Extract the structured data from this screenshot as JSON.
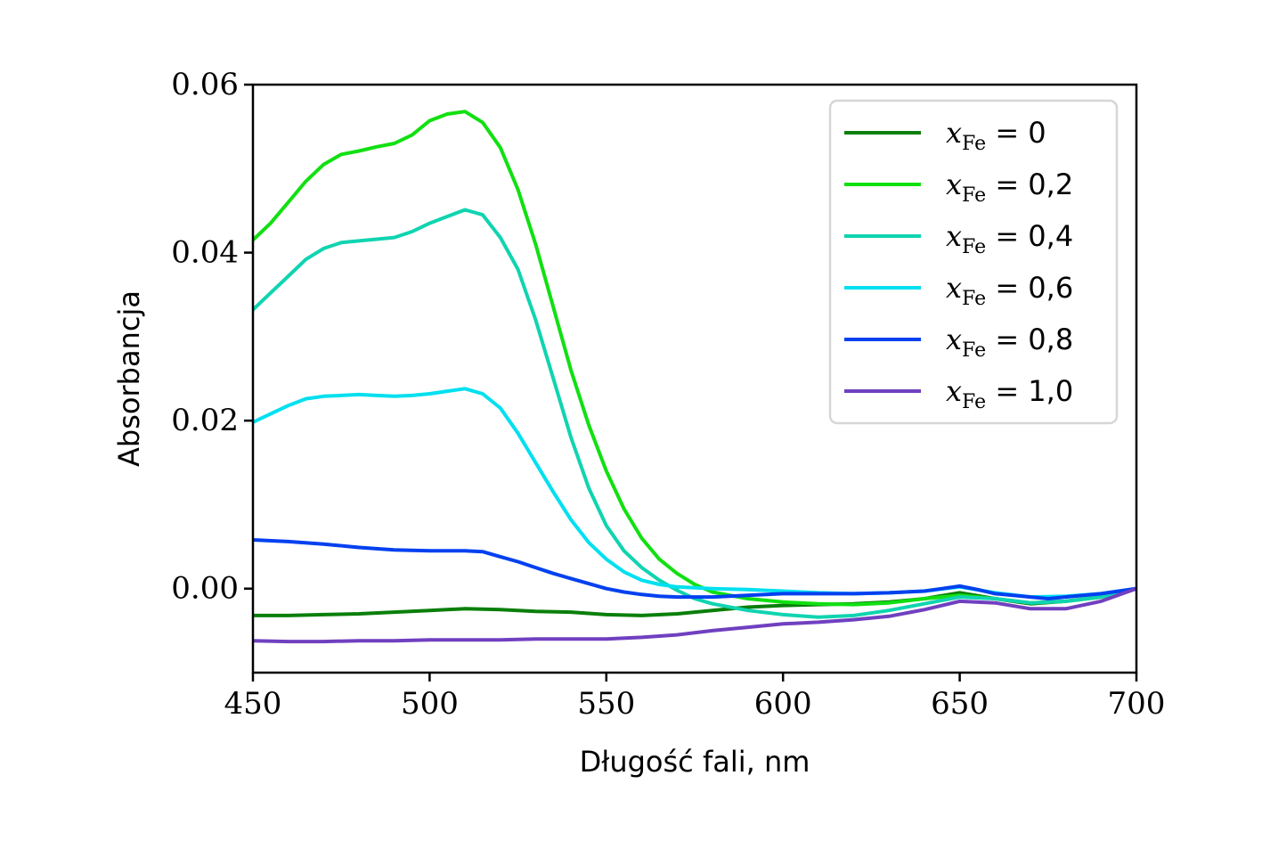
{
  "chart_data": {
    "type": "line",
    "xlabel": "Długość fali, nm",
    "ylabel": "Absorbancja",
    "xlim": [
      450,
      700
    ],
    "ylim": [
      -0.01,
      0.06
    ],
    "xticks": [
      450,
      500,
      550,
      600,
      650,
      700
    ],
    "yticks": [
      0.0,
      0.02,
      0.04,
      0.06
    ],
    "xtick_labels": [
      "450",
      "500",
      "550",
      "600",
      "650",
      "700"
    ],
    "ytick_labels": [
      "0.00",
      "0.02",
      "0.04",
      "0.06"
    ],
    "grid": false,
    "legend_position": "top-right",
    "legend_prefix_var": "x",
    "legend_prefix_sub": "Fe",
    "series": [
      {
        "name": "0",
        "color": "#0a7f0a",
        "x": [
          450,
          460,
          470,
          480,
          490,
          500,
          510,
          520,
          530,
          540,
          550,
          560,
          570,
          580,
          590,
          600,
          610,
          620,
          630,
          640,
          650,
          660,
          670,
          680,
          690,
          700
        ],
        "y": [
          -0.0032,
          -0.0032,
          -0.0031,
          -0.003,
          -0.0028,
          -0.0026,
          -0.0024,
          -0.0025,
          -0.0027,
          -0.0028,
          -0.0031,
          -0.0032,
          -0.003,
          -0.0026,
          -0.0022,
          -0.002,
          -0.0019,
          -0.0018,
          -0.0016,
          -0.0012,
          -0.0005,
          -0.0012,
          -0.0018,
          -0.0015,
          -0.001,
          0.0
        ]
      },
      {
        "name": "0,2",
        "color": "#11e011",
        "x": [
          450,
          455,
          460,
          465,
          470,
          475,
          480,
          485,
          490,
          495,
          500,
          505,
          510,
          515,
          520,
          525,
          530,
          535,
          540,
          545,
          550,
          555,
          560,
          565,
          570,
          575,
          580,
          590,
          600,
          610,
          620,
          630,
          640,
          650,
          660,
          670,
          680,
          690,
          700
        ],
        "y": [
          0.0415,
          0.0435,
          0.046,
          0.0485,
          0.0505,
          0.0517,
          0.0521,
          0.0526,
          0.053,
          0.054,
          0.0557,
          0.0565,
          0.0568,
          0.0555,
          0.0525,
          0.0475,
          0.041,
          0.0335,
          0.026,
          0.0195,
          0.014,
          0.0095,
          0.006,
          0.0035,
          0.0018,
          0.0005,
          -0.0004,
          -0.0012,
          -0.0016,
          -0.0018,
          -0.0019,
          -0.0017,
          -0.0012,
          -0.0008,
          -0.0012,
          -0.0017,
          -0.0015,
          -0.001,
          0.0
        ]
      },
      {
        "name": "0,4",
        "color": "#10d4b0",
        "x": [
          450,
          455,
          460,
          465,
          470,
          475,
          480,
          485,
          490,
          495,
          500,
          505,
          510,
          515,
          520,
          525,
          530,
          535,
          540,
          545,
          550,
          555,
          560,
          565,
          570,
          575,
          580,
          590,
          600,
          610,
          620,
          630,
          640,
          650,
          660,
          670,
          680,
          690,
          700
        ],
        "y": [
          0.0332,
          0.0352,
          0.0372,
          0.0392,
          0.0405,
          0.0412,
          0.0414,
          0.0416,
          0.0418,
          0.0425,
          0.0435,
          0.0443,
          0.0451,
          0.0445,
          0.0418,
          0.038,
          0.032,
          0.025,
          0.018,
          0.012,
          0.0075,
          0.0045,
          0.0025,
          0.001,
          -0.0002,
          -0.0012,
          -0.0018,
          -0.0026,
          -0.0031,
          -0.0034,
          -0.0032,
          -0.0026,
          -0.0018,
          -0.001,
          -0.0012,
          -0.0017,
          -0.0015,
          -0.001,
          0.0
        ]
      },
      {
        "name": "0,6",
        "color": "#00e0f0",
        "x": [
          450,
          455,
          460,
          465,
          470,
          475,
          480,
          485,
          490,
          495,
          500,
          505,
          510,
          515,
          520,
          525,
          530,
          535,
          540,
          545,
          550,
          555,
          560,
          565,
          570,
          575,
          580,
          590,
          600,
          610,
          620,
          630,
          640,
          650,
          660,
          670,
          680,
          690,
          700
        ],
        "y": [
          0.0198,
          0.0208,
          0.0218,
          0.0226,
          0.0229,
          0.023,
          0.0231,
          0.023,
          0.0229,
          0.023,
          0.0232,
          0.0235,
          0.0238,
          0.0232,
          0.0215,
          0.0185,
          0.015,
          0.0115,
          0.0082,
          0.0055,
          0.0035,
          0.002,
          0.001,
          0.0005,
          0.0002,
          0.0001,
          0.0,
          -0.0001,
          -0.0003,
          -0.0005,
          -0.0006,
          -0.0005,
          -0.0003,
          0.0002,
          -0.0005,
          -0.001,
          -0.0009,
          -0.0006,
          0.0
        ]
      },
      {
        "name": "0,8",
        "color": "#0040f0",
        "x": [
          450,
          460,
          470,
          480,
          490,
          500,
          510,
          515,
          520,
          525,
          530,
          535,
          540,
          545,
          550,
          555,
          560,
          565,
          570,
          580,
          590,
          600,
          610,
          620,
          630,
          640,
          645,
          650,
          655,
          660,
          670,
          675,
          680,
          690,
          700
        ],
        "y": [
          0.0058,
          0.0056,
          0.0053,
          0.0049,
          0.0046,
          0.0045,
          0.0045,
          0.0044,
          0.0038,
          0.0032,
          0.0025,
          0.0018,
          0.0012,
          0.0006,
          0.0,
          -0.0004,
          -0.0007,
          -0.0009,
          -0.001,
          -0.001,
          -0.0008,
          -0.0006,
          -0.0006,
          -0.0006,
          -0.0005,
          -0.0003,
          0.0,
          0.0003,
          -0.0001,
          -0.0006,
          -0.001,
          -0.0012,
          -0.001,
          -0.0006,
          0.0
        ]
      },
      {
        "name": "1,0",
        "color": "#7040c0",
        "x": [
          450,
          460,
          470,
          480,
          490,
          500,
          510,
          520,
          530,
          540,
          550,
          560,
          570,
          580,
          590,
          600,
          610,
          620,
          630,
          640,
          650,
          660,
          670,
          680,
          690,
          700
        ],
        "y": [
          -0.0062,
          -0.0063,
          -0.0063,
          -0.0062,
          -0.0062,
          -0.0061,
          -0.0061,
          -0.0061,
          -0.006,
          -0.006,
          -0.006,
          -0.0058,
          -0.0055,
          -0.005,
          -0.0046,
          -0.0042,
          -0.004,
          -0.0037,
          -0.0033,
          -0.0025,
          -0.0015,
          -0.0017,
          -0.0024,
          -0.0024,
          -0.0015,
          0.0
        ]
      }
    ]
  }
}
